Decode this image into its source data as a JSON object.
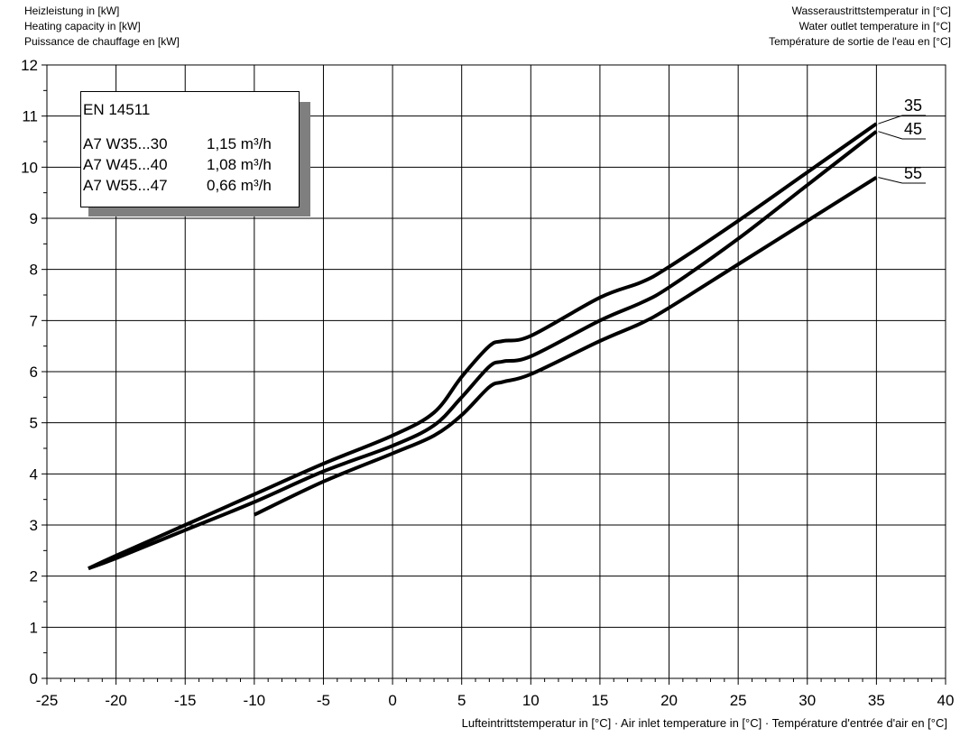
{
  "chart_data": {
    "type": "line",
    "title": "",
    "ylabel_lines": [
      "Heizleistung in [kW]",
      "Heating capacity in [kW]",
      "Puissance de chauffage en [kW]"
    ],
    "y2label_lines": [
      "Wasseraustrittstemperatur in [°C]",
      "Water outlet temperature in [°C]",
      "Température de sortie de l'eau en [°C]"
    ],
    "xlabel": "Lufteintrittstemperatur in [°C] · Air inlet temperature in [°C] · Température d'entrée d'air en [°C]",
    "xlim": [
      -25,
      40
    ],
    "ylim": [
      0,
      12
    ],
    "x_ticks": [
      -25,
      -20,
      -15,
      -10,
      -5,
      0,
      5,
      10,
      15,
      20,
      25,
      30,
      35,
      40
    ],
    "y_ticks": [
      0,
      1,
      2,
      3,
      4,
      5,
      6,
      7,
      8,
      9,
      10,
      11,
      12
    ],
    "grid": true,
    "series": [
      {
        "name": "35",
        "x": [
          -22,
          -20,
          -15,
          -10,
          -5,
          0,
          3,
          5,
          7,
          8,
          10,
          15,
          18,
          20,
          25,
          30,
          35
        ],
        "y": [
          2.15,
          2.4,
          3.0,
          3.6,
          4.2,
          4.75,
          5.2,
          5.9,
          6.5,
          6.6,
          6.7,
          7.45,
          7.75,
          8.05,
          8.95,
          9.9,
          10.85
        ]
      },
      {
        "name": "45",
        "x": [
          -22,
          -20,
          -15,
          -10,
          -5,
          0,
          3,
          5,
          7,
          8,
          10,
          15,
          18,
          20,
          25,
          30,
          35
        ],
        "y": [
          2.15,
          2.35,
          2.9,
          3.45,
          4.05,
          4.55,
          4.95,
          5.5,
          6.1,
          6.2,
          6.3,
          7.0,
          7.35,
          7.65,
          8.6,
          9.65,
          10.7
        ]
      },
      {
        "name": "55",
        "x": [
          -10,
          -5,
          0,
          3,
          5,
          7,
          8,
          10,
          15,
          18,
          20,
          25,
          30,
          35
        ],
        "y": [
          3.2,
          3.85,
          4.4,
          4.75,
          5.15,
          5.7,
          5.8,
          5.95,
          6.6,
          6.95,
          7.25,
          8.1,
          8.95,
          9.8
        ]
      }
    ],
    "legend": {
      "placement": "top-left",
      "title": "EN 14511",
      "rows": [
        {
          "label": "A7 W35...30",
          "value": "1,15 m³/h"
        },
        {
          "label": "A7 W45...40",
          "value": "1,08 m³/h"
        },
        {
          "label": "A7 W55...47",
          "value": "0,66 m³/h"
        }
      ]
    }
  }
}
